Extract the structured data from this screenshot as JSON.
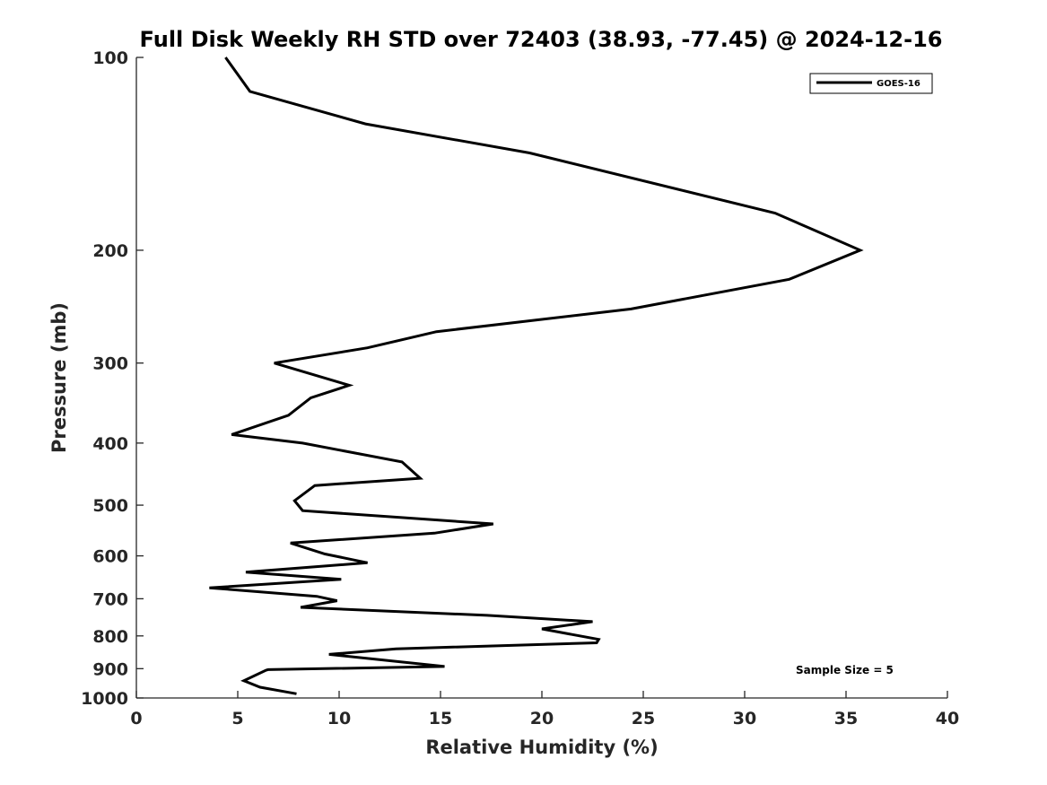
{
  "chart_data": {
    "type": "line",
    "title": "Full Disk Weekly RH STD over 72403 (38.93, -77.45) @ 2024-12-16",
    "xlabel": "Relative Humidity (%)",
    "ylabel": "Pressure (mb)",
    "xlim": [
      0,
      40
    ],
    "ylim": [
      100,
      1000
    ],
    "yscale": "log",
    "yreversed": true,
    "grid": false,
    "legend_position": "top-right",
    "x_ticks": [
      0,
      5,
      10,
      15,
      20,
      25,
      30,
      35,
      40
    ],
    "x_tick_labels": [
      "0",
      "5",
      "10",
      "15",
      "20",
      "25",
      "30",
      "35",
      "40"
    ],
    "y_ticks": [
      100,
      200,
      300,
      400,
      500,
      600,
      700,
      800,
      900,
      1000
    ],
    "y_tick_labels": [
      "100",
      "200",
      "300",
      "400",
      "500",
      "600",
      "700",
      "800",
      "900",
      "1000"
    ],
    "series": [
      {
        "name": "GOES-16",
        "color": "#000000",
        "x": [
          4.4,
          5.6,
          11.3,
          19.4,
          31.5,
          35.7,
          32.2,
          24.4,
          14.8,
          11.4,
          6.8,
          10.5,
          8.6,
          7.5,
          4.7,
          8.2,
          13.1,
          14.0,
          8.8,
          7.8,
          8.2,
          17.6,
          14.7,
          7.6,
          9.3,
          11.4,
          5.4,
          10.1,
          3.6,
          8.9,
          9.9,
          8.1,
          17.3,
          22.5,
          20.0,
          22.8,
          22.7,
          12.8,
          9.5,
          15.2,
          6.5,
          6.4,
          5.3,
          6.1,
          7.9
        ],
        "y": [
          100,
          113,
          127,
          141,
          175,
          200,
          222,
          247,
          268,
          284,
          300,
          325,
          340,
          362,
          388,
          400,
          428,
          454,
          466,
          492,
          510,
          535,
          553,
          573,
          596,
          615,
          636,
          653,
          673,
          694,
          705,
          722,
          743,
          760,
          780,
          810,
          820,
          838,
          855,
          893,
          903,
          905,
          940,
          962,
          985
        ]
      }
    ],
    "annotations": [
      {
        "text": "Sample Size = 5"
      }
    ]
  }
}
